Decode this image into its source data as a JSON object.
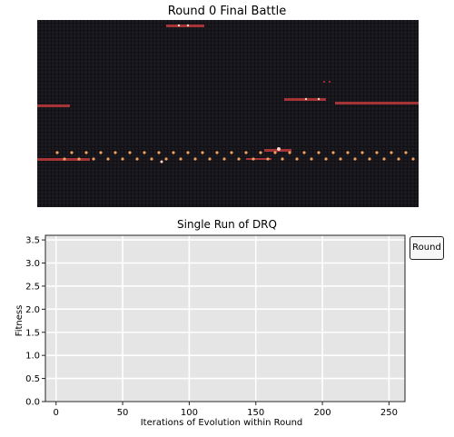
{
  "battle": {
    "title": "Round 0 Final Battle"
  },
  "chart_data": {
    "type": "line",
    "title": "Single Run of DRQ",
    "xlabel": "Iterations of Evolution within Round",
    "ylabel": "Fitness",
    "xlim": [
      -8,
      262
    ],
    "ylim": [
      0.0,
      3.6
    ],
    "xticks": [
      0,
      50,
      100,
      150,
      200,
      250
    ],
    "yticks": [
      0.0,
      0.5,
      1.0,
      1.5,
      2.0,
      2.5,
      3.0,
      3.5
    ],
    "xtick_labels": [
      "0",
      "50",
      "100",
      "150",
      "200",
      "250"
    ],
    "ytick_labels": [
      "0.0",
      "0.5",
      "1.0",
      "1.5",
      "2.0",
      "2.5",
      "3.0",
      "3.5"
    ],
    "grid": true,
    "legend_position": "outside-top-right",
    "series": [
      {
        "name": "Round",
        "x": [],
        "y": []
      }
    ]
  },
  "colors": {
    "plot_background": "#e5e5e5",
    "grid": "#ffffff",
    "battle_background": "#121015",
    "warrior_red": "#c0393b",
    "warrior_orange": "#f0a060",
    "warrior_highlight": "#ffd6c8"
  }
}
